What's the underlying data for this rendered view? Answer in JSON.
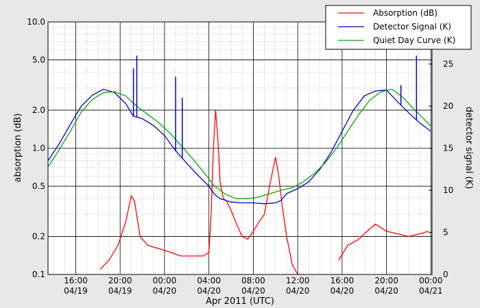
{
  "chart_data": {
    "type": "line",
    "xlabel": "Apr 2011 (UTC)",
    "ylabel_left": "absorption (dB)",
    "ylabel_right": "detector signal (K)",
    "left_axis": {
      "scale": "log",
      "range": [
        0.1,
        10.0
      ],
      "ticks": [
        "0.1",
        "0.2",
        "0.5",
        "1.0",
        "2.0",
        "5.0",
        "10.0"
      ]
    },
    "right_axis": {
      "scale": "linear",
      "range": [
        0,
        30
      ],
      "ticks": [
        "0",
        "5",
        "10",
        "15",
        "20",
        "25"
      ]
    },
    "x_axis": {
      "range_hours": [
        13.5,
        48.1
      ],
      "ticks": [
        {
          "time": "16:00",
          "date": "04/19"
        },
        {
          "time": "20:00",
          "date": "04/19"
        },
        {
          "time": "00:00",
          "date": "04/20"
        },
        {
          "time": "04:00",
          "date": "04/20"
        },
        {
          "time": "08:00",
          "date": "04/20"
        },
        {
          "time": "12:00",
          "date": "04/20"
        },
        {
          "time": "16:00",
          "date": "04/20"
        },
        {
          "time": "20:00",
          "date": "04/20"
        },
        {
          "time": "00:00",
          "date": "04/21"
        }
      ]
    },
    "grid": true,
    "legend_position": "top-right",
    "series": [
      {
        "name": "Absorption (dB)",
        "color": "#ff0000",
        "axis": "left",
        "x": [
          18.2,
          19.0,
          19.8,
          20.5,
          21.0,
          21.3,
          21.8,
          22.5,
          23.5,
          24.5,
          25.5,
          26.5,
          27.5,
          28.0,
          28.2,
          28.4,
          28.6,
          28.8,
          29.0,
          29.3,
          29.6,
          30.0,
          30.5,
          31.0,
          31.5,
          32.0,
          32.5,
          33.0,
          33.5,
          34.0,
          34.3,
          34.6,
          35.0,
          35.5,
          36.0,
          36.5
        ],
        "y": [
          0.11,
          0.13,
          0.17,
          0.26,
          0.42,
          0.38,
          0.2,
          0.17,
          0.16,
          0.15,
          0.14,
          0.14,
          0.14,
          0.15,
          0.3,
          1.0,
          2.0,
          1.2,
          0.55,
          0.4,
          0.38,
          0.32,
          0.25,
          0.2,
          0.19,
          0.22,
          0.26,
          0.3,
          0.52,
          0.85,
          0.6,
          0.35,
          0.2,
          0.12,
          0.1,
          0.1
        ]
      },
      {
        "name": "Absorption (dB)",
        "color": "#ff0000",
        "axis": "left",
        "x": [
          39.7,
          40.5,
          41.5,
          42.0,
          42.5,
          43.0,
          44.0,
          45.0,
          46.0,
          47.0,
          47.8
        ],
        "y": [
          0.13,
          0.17,
          0.19,
          0.21,
          0.23,
          0.25,
          0.22,
          0.21,
          0.2,
          0.21,
          0.22
        ]
      },
      {
        "name": "Detector Signal (K)",
        "color": "#0000cc",
        "axis": "right",
        "x": [
          13.5,
          14.5,
          15.5,
          16.5,
          17.5,
          18.5,
          19.5,
          20.5,
          21.2,
          22.0,
          23.0,
          24.0,
          25.0,
          26.0,
          27.0,
          28.0,
          28.5,
          29.0,
          30.0,
          31.0,
          32.0,
          33.0,
          34.0,
          34.5,
          35.0,
          36.0,
          37.0,
          38.0,
          39.0,
          40.0,
          41.0,
          42.0,
          43.0,
          44.0,
          45.0,
          46.0,
          47.0,
          48.0
        ],
        "y": [
          13.5,
          15.5,
          17.8,
          20.0,
          21.3,
          22.0,
          21.6,
          20.3,
          18.8,
          18.5,
          17.7,
          16.5,
          14.7,
          13.2,
          11.8,
          10.5,
          9.5,
          9.0,
          8.6,
          8.5,
          8.5,
          8.4,
          8.5,
          8.8,
          9.6,
          10.2,
          11.0,
          12.5,
          14.5,
          17.0,
          19.5,
          21.2,
          21.8,
          21.9,
          20.5,
          19.2,
          18.0,
          17.0
        ]
      },
      {
        "name": "Quiet Day Curve (K)",
        "color": "#00aa00",
        "axis": "right",
        "x": [
          13.5,
          14.5,
          15.5,
          16.5,
          17.5,
          18.5,
          19.5,
          20.5,
          21.5,
          22.5,
          23.5,
          24.5,
          25.5,
          26.5,
          27.5,
          28.5,
          29.5,
          30.5,
          31.5,
          32.5,
          33.5,
          34.5,
          35.5,
          36.5,
          37.5,
          38.5,
          39.5,
          40.5,
          41.5,
          42.5,
          43.5,
          44.5,
          45.5,
          46.5,
          47.5,
          48.0
        ],
        "y": [
          12.8,
          14.8,
          17.0,
          19.3,
          20.8,
          21.6,
          21.7,
          21.2,
          20.0,
          19.0,
          18.0,
          16.8,
          15.3,
          13.8,
          12.2,
          10.5,
          9.5,
          9.0,
          9.0,
          9.2,
          9.6,
          10.0,
          10.3,
          11.0,
          12.0,
          13.3,
          15.0,
          17.0,
          19.0,
          20.7,
          21.7,
          22.0,
          21.0,
          19.6,
          18.3,
          17.6
        ]
      }
    ],
    "spikes": [
      {
        "x": 21.2,
        "y": 24.5
      },
      {
        "x": 21.5,
        "y": 26.0
      },
      {
        "x": 25.0,
        "y": 23.5
      },
      {
        "x": 25.6,
        "y": 21.0
      },
      {
        "x": 45.3,
        "y": 22.5
      },
      {
        "x": 46.7,
        "y": 26.0
      }
    ]
  }
}
